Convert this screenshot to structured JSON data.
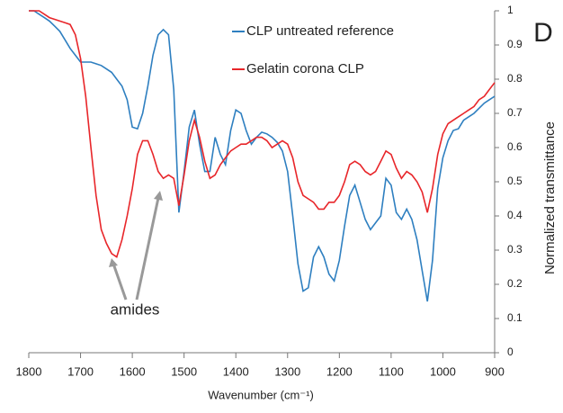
{
  "chart_data": {
    "type": "line",
    "panel_label": "D",
    "x_label": "Wavenumber (cm⁻¹)",
    "y_label": "Normalized transmittance",
    "annotation": "amides",
    "xlim": [
      1800,
      900
    ],
    "xticks": [
      1800,
      1700,
      1600,
      1500,
      1400,
      1300,
      1200,
      1100,
      1000,
      900
    ],
    "ylim": [
      0,
      1
    ],
    "yticks": [
      0,
      0.1,
      0.2,
      0.3,
      0.4,
      0.5,
      0.6,
      0.7,
      0.8,
      0.9,
      1
    ],
    "x": [
      1800,
      1790,
      1780,
      1770,
      1760,
      1750,
      1740,
      1730,
      1720,
      1710,
      1700,
      1690,
      1680,
      1670,
      1660,
      1650,
      1640,
      1630,
      1620,
      1610,
      1600,
      1590,
      1580,
      1570,
      1560,
      1550,
      1540,
      1530,
      1520,
      1510,
      1500,
      1490,
      1480,
      1470,
      1460,
      1450,
      1440,
      1430,
      1420,
      1410,
      1400,
      1390,
      1380,
      1370,
      1360,
      1350,
      1340,
      1330,
      1320,
      1310,
      1300,
      1290,
      1280,
      1270,
      1260,
      1250,
      1240,
      1230,
      1220,
      1210,
      1200,
      1190,
      1180,
      1170,
      1160,
      1150,
      1140,
      1130,
      1120,
      1110,
      1100,
      1090,
      1080,
      1070,
      1060,
      1050,
      1040,
      1030,
      1020,
      1010,
      1000,
      990,
      980,
      970,
      960,
      950,
      940,
      930,
      920,
      910,
      900
    ],
    "series": [
      {
        "name": "CLP untreated reference",
        "color": "#2e7fc0",
        "values": [
          1.0,
          1.0,
          0.99,
          0.98,
          0.97,
          0.955,
          0.94,
          0.915,
          0.89,
          0.87,
          0.85,
          0.85,
          0.85,
          0.845,
          0.84,
          0.83,
          0.82,
          0.8,
          0.78,
          0.74,
          0.66,
          0.655,
          0.7,
          0.78,
          0.87,
          0.93,
          0.945,
          0.93,
          0.77,
          0.41,
          0.53,
          0.66,
          0.71,
          0.61,
          0.53,
          0.53,
          0.63,
          0.58,
          0.55,
          0.65,
          0.71,
          0.7,
          0.65,
          0.61,
          0.63,
          0.645,
          0.64,
          0.63,
          0.615,
          0.59,
          0.53,
          0.4,
          0.26,
          0.18,
          0.19,
          0.28,
          0.31,
          0.28,
          0.23,
          0.21,
          0.27,
          0.37,
          0.46,
          0.49,
          0.44,
          0.39,
          0.36,
          0.38,
          0.4,
          0.51,
          0.49,
          0.41,
          0.39,
          0.42,
          0.39,
          0.33,
          0.24,
          0.15,
          0.27,
          0.48,
          0.57,
          0.62,
          0.65,
          0.655,
          0.68,
          0.69,
          0.7,
          0.715,
          0.73,
          0.74,
          0.75
        ]
      },
      {
        "name": "Gelatin corona CLP",
        "color": "#e8262a",
        "values": [
          1.0,
          1.0,
          1.0,
          0.99,
          0.98,
          0.975,
          0.97,
          0.965,
          0.96,
          0.93,
          0.86,
          0.75,
          0.6,
          0.46,
          0.36,
          0.32,
          0.29,
          0.28,
          0.33,
          0.4,
          0.48,
          0.58,
          0.62,
          0.62,
          0.58,
          0.53,
          0.51,
          0.52,
          0.51,
          0.43,
          0.52,
          0.62,
          0.68,
          0.63,
          0.56,
          0.51,
          0.52,
          0.55,
          0.57,
          0.59,
          0.6,
          0.61,
          0.61,
          0.62,
          0.63,
          0.63,
          0.62,
          0.6,
          0.61,
          0.62,
          0.61,
          0.57,
          0.5,
          0.46,
          0.45,
          0.44,
          0.42,
          0.42,
          0.44,
          0.44,
          0.46,
          0.5,
          0.55,
          0.56,
          0.55,
          0.53,
          0.52,
          0.53,
          0.56,
          0.59,
          0.58,
          0.54,
          0.51,
          0.53,
          0.52,
          0.5,
          0.47,
          0.41,
          0.48,
          0.58,
          0.64,
          0.67,
          0.68,
          0.69,
          0.7,
          0.71,
          0.72,
          0.74,
          0.75,
          0.77,
          0.79
        ]
      }
    ]
  }
}
